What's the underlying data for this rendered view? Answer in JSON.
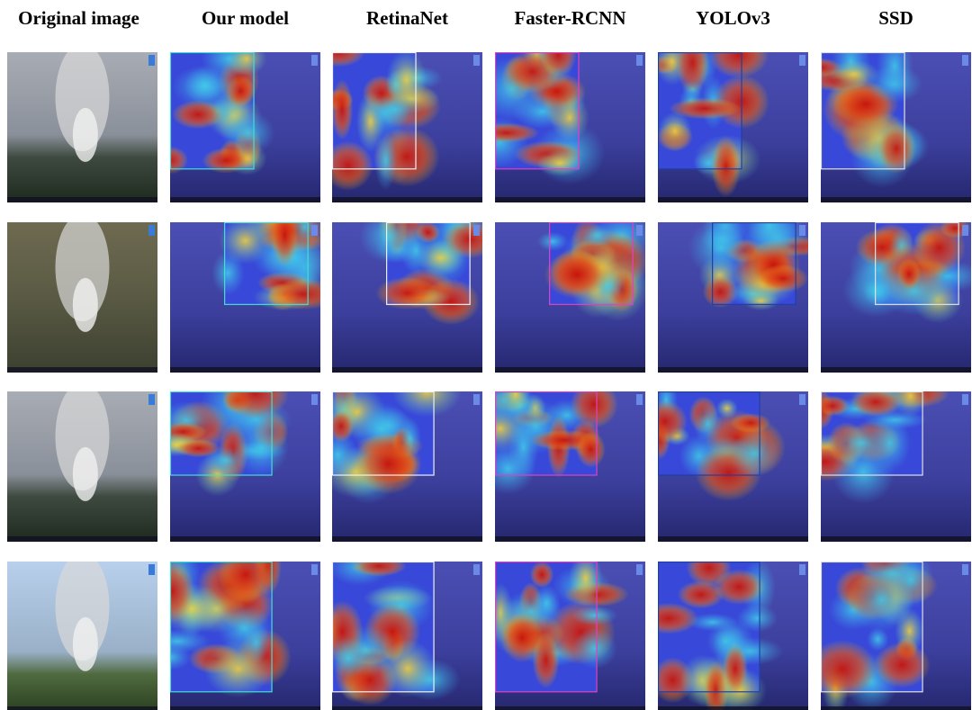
{
  "columns": [
    "Original image",
    "Our model",
    "RetinaNet",
    "Faster-RCNN",
    "YOLOv3",
    "SSD"
  ]
}
